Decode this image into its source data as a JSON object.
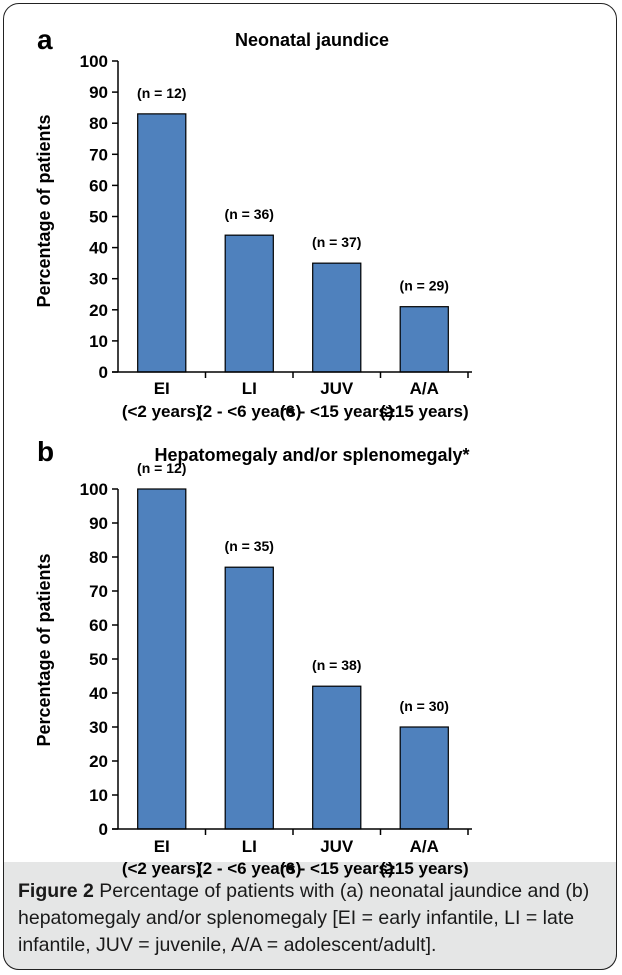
{
  "chart_data": [
    {
      "type": "bar",
      "panel": "a",
      "title": "Neonatal jaundice",
      "ylabel": "Percentage of patients",
      "ylim": [
        0,
        100
      ],
      "yticks": [
        "0",
        "10",
        "20",
        "30",
        "40",
        "50",
        "60",
        "70",
        "80",
        "90",
        "100"
      ],
      "categories": [
        {
          "line1": "EI",
          "line2": "(<2 years)"
        },
        {
          "line1": "LI",
          "line2": "(2 - <6 years)"
        },
        {
          "line1": "JUV",
          "line2": "(6 - <15 years)"
        },
        {
          "line1": "A/A",
          "line2": "(≥15 years)"
        }
      ],
      "values": [
        83,
        44,
        35,
        21
      ],
      "bar_labels": [
        "(n = 12)",
        "(n = 36)",
        "(n = 37)",
        "(n = 29)"
      ],
      "bar_color": "#4f81bd"
    },
    {
      "type": "bar",
      "panel": "b",
      "title": "Hepatomegaly and/or splenomegaly*",
      "ylabel": "Percentage of patients",
      "ylim": [
        0,
        100
      ],
      "yticks": [
        "0",
        "10",
        "20",
        "30",
        "40",
        "50",
        "60",
        "70",
        "80",
        "90",
        "100"
      ],
      "categories": [
        {
          "line1": "EI",
          "line2": "(<2 years)"
        },
        {
          "line1": "LI",
          "line2": "(2 - <6 years)"
        },
        {
          "line1": "JUV",
          "line2": "(6 - <15 years)"
        },
        {
          "line1": "A/A",
          "line2": "(≥15 years)"
        }
      ],
      "values": [
        100,
        77,
        42,
        30
      ],
      "bar_labels": [
        "(n = 12)",
        "(n = 35)",
        "(n = 38)",
        "(n = 30)"
      ],
      "bar_color": "#4f81bd"
    }
  ],
  "caption": {
    "label": "Figure 2",
    "text": " Percentage of patients with (a) neonatal jaundice and (b) hepatomegaly and/or splenomegaly [EI = early infantile, LI = late infantile, JUV = juvenile, A/A = adolescent/adult]."
  }
}
